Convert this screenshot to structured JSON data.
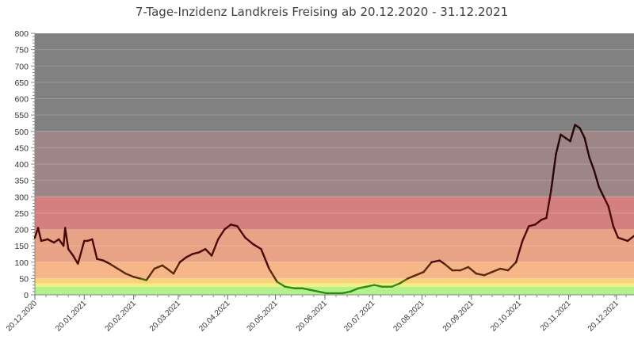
{
  "chart_data": {
    "type": "line",
    "title": "7-Tage-Inzidenz Landkreis Freising ab 20.12.2020 - 31.12.2021",
    "xlabel": "",
    "ylabel": "",
    "ylim": [
      0,
      800
    ],
    "xlim": [
      "2020-12-20",
      "2021-12-31"
    ],
    "y_ticks": [
      "0",
      "50",
      "100",
      "150",
      "200",
      "250",
      "300",
      "350",
      "400",
      "450",
      "500",
      "550",
      "600",
      "650",
      "700",
      "750",
      "800"
    ],
    "x_ticks": [
      "20.12.2020",
      "20.01.2021",
      "20.02.2021",
      "20.03.2021",
      "20.04.2021",
      "20.05.2021",
      "20.06.2021",
      "20.07.2021",
      "20.08.2021",
      "20.09.2021",
      "20.10.2021",
      "20.11.2021",
      "20.12.2021"
    ],
    "bands": [
      {
        "from": 0,
        "to": 25,
        "color": "#b4f08c"
      },
      {
        "from": 25,
        "to": 35,
        "color": "#f2f07e"
      },
      {
        "from": 35,
        "to": 50,
        "color": "#f9d27c"
      },
      {
        "from": 50,
        "to": 100,
        "color": "#f7b687"
      },
      {
        "from": 100,
        "to": 200,
        "color": "#e8a386"
      },
      {
        "from": 200,
        "to": 300,
        "color": "#d48080"
      },
      {
        "from": 300,
        "to": 500,
        "color": "#9f8686"
      },
      {
        "from": 500,
        "to": 800,
        "color": "#818181"
      }
    ],
    "series": [
      {
        "line_color_low": "#2f8a1a",
        "line_color_high": "#4a0a0a",
        "x": [
          "2020-12-20",
          "2020-12-22",
          "2020-12-24",
          "2020-12-28",
          "2021-01-01",
          "2021-01-04",
          "2021-01-07",
          "2021-01-08",
          "2021-01-10",
          "2021-01-13",
          "2021-01-16",
          "2021-01-20",
          "2021-01-22",
          "2021-01-25",
          "2021-01-28",
          "2021-02-01",
          "2021-02-05",
          "2021-02-10",
          "2021-02-15",
          "2021-02-20",
          "2021-02-24",
          "2021-02-28",
          "2021-03-05",
          "2021-03-10",
          "2021-03-13",
          "2021-03-17",
          "2021-03-21",
          "2021-03-25",
          "2021-03-29",
          "2021-04-02",
          "2021-04-06",
          "2021-04-10",
          "2021-04-14",
          "2021-04-18",
          "2021-04-22",
          "2021-04-26",
          "2021-05-01",
          "2021-05-06",
          "2021-05-11",
          "2021-05-16",
          "2021-05-21",
          "2021-05-26",
          "2021-06-01",
          "2021-06-06",
          "2021-06-11",
          "2021-06-16",
          "2021-06-21",
          "2021-06-26",
          "2021-07-01",
          "2021-07-06",
          "2021-07-11",
          "2021-07-16",
          "2021-07-21",
          "2021-07-26",
          "2021-08-01",
          "2021-08-06",
          "2021-08-11",
          "2021-08-16",
          "2021-08-21",
          "2021-08-26",
          "2021-08-31",
          "2021-09-03",
          "2021-09-08",
          "2021-09-13",
          "2021-09-18",
          "2021-09-23",
          "2021-09-28",
          "2021-10-03",
          "2021-10-08",
          "2021-10-13",
          "2021-10-18",
          "2021-10-22",
          "2021-10-26",
          "2021-10-30",
          "2021-11-03",
          "2021-11-06",
          "2021-11-09",
          "2021-11-12",
          "2021-11-15",
          "2021-11-18",
          "2021-11-21",
          "2021-11-24",
          "2021-11-27",
          "2021-11-30",
          "2021-12-03",
          "2021-12-06",
          "2021-12-09",
          "2021-12-12",
          "2021-12-15",
          "2021-12-18",
          "2021-12-21",
          "2021-12-24",
          "2021-12-27",
          "2021-12-31"
        ],
        "y": [
          175,
          205,
          165,
          170,
          160,
          170,
          150,
          205,
          140,
          120,
          95,
          165,
          165,
          170,
          110,
          105,
          95,
          80,
          65,
          55,
          50,
          45,
          80,
          90,
          80,
          65,
          100,
          115,
          125,
          130,
          140,
          120,
          170,
          200,
          215,
          210,
          175,
          155,
          140,
          80,
          40,
          25,
          20,
          20,
          15,
          10,
          5,
          5,
          5,
          10,
          20,
          25,
          30,
          25,
          25,
          35,
          50,
          60,
          70,
          100,
          105,
          95,
          75,
          75,
          85,
          65,
          60,
          70,
          80,
          75,
          100,
          165,
          210,
          215,
          230,
          235,
          320,
          430,
          490,
          480,
          470,
          520,
          510,
          480,
          420,
          380,
          330,
          300,
          270,
          210,
          175,
          170,
          165,
          180
        ]
      }
    ]
  }
}
